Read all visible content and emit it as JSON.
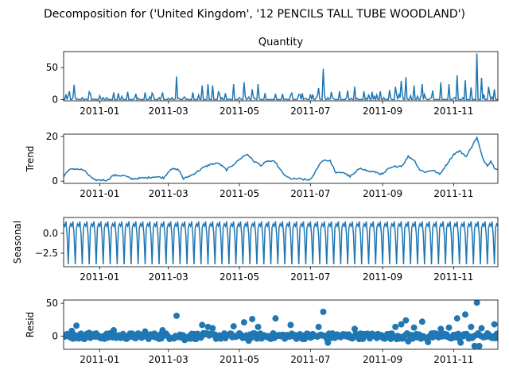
{
  "figure": {
    "suptitle": "Decomposition for ('United Kingdom', '12 PENCILS TALL TUBE WOODLAND')"
  },
  "colors": {
    "line": "#1f77b4",
    "marker": "#1f77b4",
    "axis": "#000000"
  },
  "chart_data": [
    {
      "type": "line",
      "title": "Quantity",
      "ylabel": "",
      "xlim": [
        "2010-12-01",
        "2011-12-09"
      ],
      "ylim": [
        -2,
        75
      ],
      "yticks": [
        0,
        50
      ],
      "ytick_labels": [
        "0",
        "50"
      ],
      "xtick_dates": [
        "2011-01-01",
        "2011-03-01",
        "2011-05-01",
        "2011-07-01",
        "2011-09-01",
        "2011-11-01"
      ],
      "xtick_labels": [
        "2011-01",
        "2011-03",
        "2011-05",
        "2011-07",
        "2011-09",
        "2011-11"
      ],
      "grid": false,
      "peaks": [
        [
          "2010-12-03",
          8
        ],
        [
          "2010-12-06",
          13
        ],
        [
          "2010-12-10",
          23
        ],
        [
          "2010-12-23",
          12
        ],
        [
          "2011-01-13",
          11
        ],
        [
          "2011-01-17",
          10
        ],
        [
          "2011-01-25",
          12
        ],
        [
          "2011-02-01",
          9
        ],
        [
          "2011-02-09",
          11
        ],
        [
          "2011-02-15",
          10
        ],
        [
          "2011-02-24",
          11
        ],
        [
          "2011-03-08",
          36
        ],
        [
          "2011-03-22",
          11
        ],
        [
          "2011-03-30",
          22
        ],
        [
          "2011-04-04",
          24
        ],
        [
          "2011-04-08",
          22
        ],
        [
          "2011-04-13",
          13
        ],
        [
          "2011-04-19",
          10
        ],
        [
          "2011-04-26",
          24
        ],
        [
          "2011-05-05",
          27
        ],
        [
          "2011-05-12",
          16
        ],
        [
          "2011-05-17",
          24
        ],
        [
          "2011-05-23",
          10
        ],
        [
          "2011-06-01",
          9
        ],
        [
          "2011-06-14",
          7
        ],
        [
          "2011-06-24",
          10
        ],
        [
          "2011-07-03",
          8
        ],
        [
          "2011-07-08",
          18
        ],
        [
          "2011-07-12",
          48
        ],
        [
          "2011-07-19",
          12
        ],
        [
          "2011-07-26",
          13
        ],
        [
          "2011-08-02",
          14
        ],
        [
          "2011-08-08",
          20
        ],
        [
          "2011-08-16",
          13
        ],
        [
          "2011-08-23",
          12
        ],
        [
          "2011-08-30",
          13
        ],
        [
          "2011-09-07",
          15
        ],
        [
          "2011-09-12",
          20
        ],
        [
          "2011-09-17",
          29
        ],
        [
          "2011-09-21",
          35
        ],
        [
          "2011-09-28",
          22
        ],
        [
          "2011-10-05",
          24
        ],
        [
          "2011-10-14",
          14
        ],
        [
          "2011-10-21",
          27
        ],
        [
          "2011-10-28",
          24
        ],
        [
          "2011-11-04",
          38
        ],
        [
          "2011-11-11",
          30
        ],
        [
          "2011-11-16",
          19
        ],
        [
          "2011-11-21",
          72
        ],
        [
          "2011-11-25",
          34
        ],
        [
          "2011-12-01",
          20
        ],
        [
          "2011-12-06",
          16
        ]
      ]
    },
    {
      "type": "line",
      "title": "",
      "ylabel": "Trend",
      "xlim": [
        "2010-12-01",
        "2011-12-09"
      ],
      "ylim": [
        -1,
        21
      ],
      "yticks": [
        0,
        20
      ],
      "ytick_labels": [
        "0",
        "20"
      ],
      "xtick_dates": [
        "2011-01-01",
        "2011-03-01",
        "2011-05-01",
        "2011-07-01",
        "2011-09-01",
        "2011-11-01"
      ],
      "xtick_labels": [
        "2011-01",
        "2011-03",
        "2011-05",
        "2011-07",
        "2011-09",
        "2011-11"
      ],
      "grid": false,
      "knots": [
        [
          "2010-12-01",
          2
        ],
        [
          "2010-12-05",
          5
        ],
        [
          "2010-12-12",
          5.5
        ],
        [
          "2010-12-18",
          5
        ],
        [
          "2010-12-22",
          3
        ],
        [
          "2010-12-27",
          0.5
        ],
        [
          "2011-01-08",
          0.5
        ],
        [
          "2011-01-12",
          2.5
        ],
        [
          "2011-01-22",
          2.5
        ],
        [
          "2011-01-28",
          1
        ],
        [
          "2011-02-10",
          1.5
        ],
        [
          "2011-02-18",
          2
        ],
        [
          "2011-02-25",
          1.5
        ],
        [
          "2011-03-03",
          5.5
        ],
        [
          "2011-03-10",
          5
        ],
        [
          "2011-03-14",
          1
        ],
        [
          "2011-03-22",
          3
        ],
        [
          "2011-03-31",
          6
        ],
        [
          "2011-04-06",
          7.5
        ],
        [
          "2011-04-13",
          8
        ],
        [
          "2011-04-20",
          5
        ],
        [
          "2011-04-26",
          7.5
        ],
        [
          "2011-05-04",
          11
        ],
        [
          "2011-05-08",
          12
        ],
        [
          "2011-05-13",
          9
        ],
        [
          "2011-05-20",
          7
        ],
        [
          "2011-05-25",
          9
        ],
        [
          "2011-06-01",
          8.5
        ],
        [
          "2011-06-05",
          5
        ],
        [
          "2011-06-10",
          2
        ],
        [
          "2011-06-15",
          1
        ],
        [
          "2011-06-22",
          1
        ],
        [
          "2011-06-28",
          0.5
        ],
        [
          "2011-07-02",
          1
        ],
        [
          "2011-07-08",
          7
        ],
        [
          "2011-07-12",
          9.5
        ],
        [
          "2011-07-18",
          9
        ],
        [
          "2011-07-23",
          3.5
        ],
        [
          "2011-07-29",
          4
        ],
        [
          "2011-08-04",
          2
        ],
        [
          "2011-08-08",
          3.5
        ],
        [
          "2011-08-13",
          6
        ],
        [
          "2011-08-19",
          4.5
        ],
        [
          "2011-08-26",
          4
        ],
        [
          "2011-09-01",
          3
        ],
        [
          "2011-09-06",
          5.5
        ],
        [
          "2011-09-12",
          6.5
        ],
        [
          "2011-09-18",
          7
        ],
        [
          "2011-09-23",
          11
        ],
        [
          "2011-09-28",
          9.5
        ],
        [
          "2011-10-03",
          5
        ],
        [
          "2011-10-08",
          4
        ],
        [
          "2011-10-14",
          5
        ],
        [
          "2011-10-20",
          3
        ],
        [
          "2011-10-26",
          7.5
        ],
        [
          "2011-11-01",
          12
        ],
        [
          "2011-11-06",
          13.5
        ],
        [
          "2011-11-12",
          11
        ],
        [
          "2011-11-17",
          16
        ],
        [
          "2011-11-21",
          19.5
        ],
        [
          "2011-11-26",
          10
        ],
        [
          "2011-11-30",
          7
        ],
        [
          "2011-12-03",
          9
        ],
        [
          "2011-12-06",
          6
        ],
        [
          "2011-12-09",
          5.5
        ]
      ]
    },
    {
      "type": "line",
      "title": "",
      "ylabel": "Seasonal",
      "xlim": [
        "2010-12-01",
        "2011-12-09"
      ],
      "ylim": [
        -4.2,
        2.0
      ],
      "yticks": [
        0,
        -2.5
      ],
      "ytick_labels": [
        "0.0",
        "−2.5"
      ],
      "xtick_dates": [
        "2011-01-01",
        "2011-03-01",
        "2011-05-01",
        "2011-07-01",
        "2011-09-01",
        "2011-11-01"
      ],
      "xtick_labels": [
        "2011-01",
        "2011-03",
        "2011-05",
        "2011-07",
        "2011-09",
        "2011-11"
      ],
      "grid": false,
      "period_days": 6,
      "pattern": [
        1.2,
        0.9,
        1.5,
        -0.2,
        -3.9,
        0.7
      ]
    },
    {
      "type": "scatter",
      "title": "",
      "ylabel": "Resid",
      "xlim": [
        "2010-12-01",
        "2011-12-09"
      ],
      "ylim": [
        -20,
        55
      ],
      "yticks": [
        0,
        50
      ],
      "ytick_labels": [
        "0",
        "50"
      ],
      "xtick_dates": [
        "2011-01-01",
        "2011-03-01",
        "2011-05-01",
        "2011-07-01",
        "2011-09-01",
        "2011-11-01"
      ],
      "xtick_labels": [
        "2011-01",
        "2011-03",
        "2011-05",
        "2011-07",
        "2011-09",
        "2011-11"
      ],
      "grid": false,
      "baseline": 0,
      "outliers": [
        [
          "2010-12-08",
          8
        ],
        [
          "2010-12-12",
          16
        ],
        [
          "2010-12-23",
          5
        ],
        [
          "2011-01-13",
          9
        ],
        [
          "2011-02-09",
          7
        ],
        [
          "2011-02-24",
          9
        ],
        [
          "2011-03-08",
          31
        ],
        [
          "2011-03-30",
          17
        ],
        [
          "2011-04-04",
          14
        ],
        [
          "2011-04-08",
          12
        ],
        [
          "2011-04-26",
          15
        ],
        [
          "2011-05-05",
          21
        ],
        [
          "2011-05-12",
          26
        ],
        [
          "2011-05-17",
          14
        ],
        [
          "2011-06-01",
          27
        ],
        [
          "2011-06-14",
          17
        ],
        [
          "2011-07-08",
          14
        ],
        [
          "2011-07-12",
          37
        ],
        [
          "2011-08-08",
          11
        ],
        [
          "2011-09-12",
          14
        ],
        [
          "2011-09-17",
          18
        ],
        [
          "2011-09-21",
          24
        ],
        [
          "2011-09-28",
          13
        ],
        [
          "2011-10-05",
          22
        ],
        [
          "2011-10-21",
          11
        ],
        [
          "2011-10-28",
          13
        ],
        [
          "2011-11-04",
          27
        ],
        [
          "2011-11-11",
          33
        ],
        [
          "2011-11-16",
          14
        ],
        [
          "2011-11-21",
          51
        ],
        [
          "2011-11-25",
          12
        ],
        [
          "2011-12-06",
          18
        ],
        [
          "2011-11-07",
          -10
        ],
        [
          "2011-11-19",
          -15
        ],
        [
          "2011-11-23",
          -15
        ],
        [
          "2011-09-23",
          -8
        ],
        [
          "2011-10-10",
          -9
        ],
        [
          "2011-07-16",
          -10
        ],
        [
          "2011-05-09",
          -7
        ],
        [
          "2011-03-15",
          -6
        ]
      ]
    }
  ]
}
